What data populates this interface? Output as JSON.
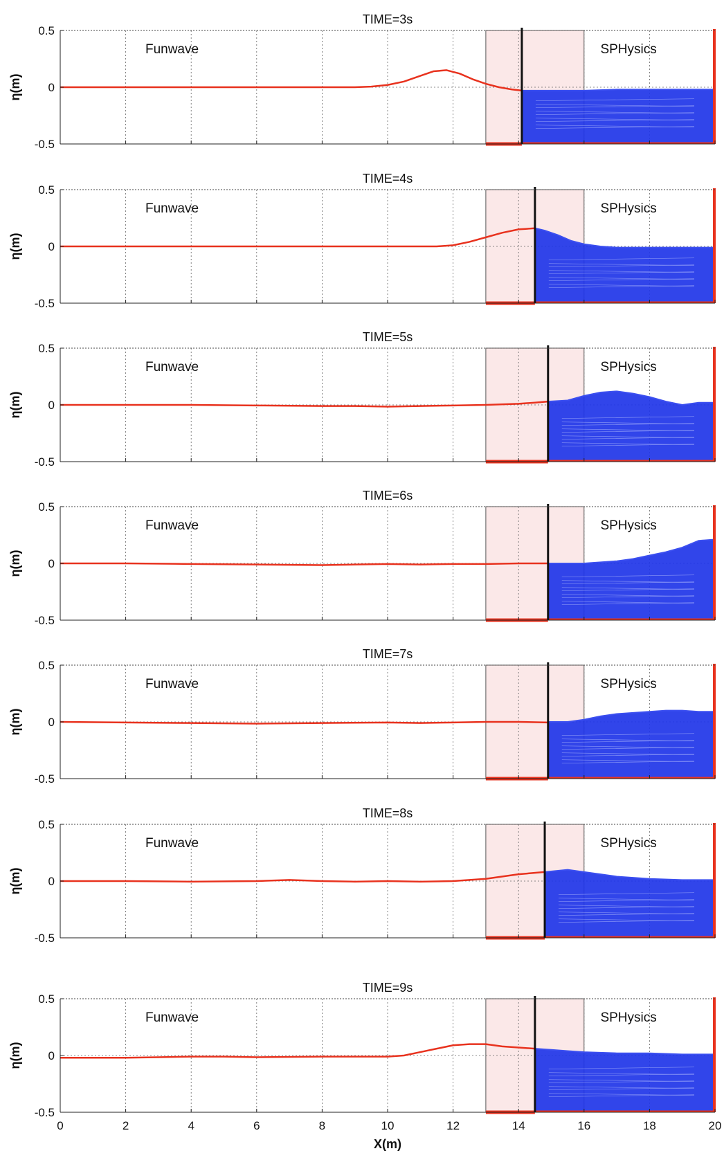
{
  "chart_data": {
    "type": "line",
    "xlabel": "X(m)",
    "ylabel": "η(m)",
    "xlim": [
      0,
      20
    ],
    "ylim": [
      -0.5,
      0.5
    ],
    "x_ticks": [
      "0",
      "2",
      "4",
      "6",
      "8",
      "10",
      "12",
      "14",
      "16",
      "18",
      "20"
    ],
    "y_ticks": [
      "0.5",
      "0",
      "-0.5"
    ],
    "grid": true,
    "left_label": "Funwave",
    "right_label": "SPHysics",
    "coupling_zone": [
      13,
      16
    ],
    "floor_level": -0.5,
    "colors": {
      "funwave_line": "#e8321e",
      "sph_particles": "#1f35e8",
      "coupling_zone": "#fbe8e8",
      "interface_line": "#111111"
    },
    "panels": [
      {
        "title": "TIME=3s",
        "interface_x": 14.1,
        "x": [
          0,
          1,
          2,
          3,
          4,
          5,
          6,
          7,
          8,
          9,
          9.5,
          10,
          10.5,
          11,
          11.4,
          11.8,
          12.2,
          12.6,
          13,
          13.4,
          13.8,
          14.1
        ],
        "eta": [
          0,
          0,
          0,
          0,
          0,
          0,
          0,
          0,
          0,
          0,
          0.005,
          0.02,
          0.05,
          0.1,
          0.14,
          0.15,
          0.12,
          0.07,
          0.03,
          0.0,
          -0.02,
          -0.03
        ],
        "sph_x": [
          14.1,
          15,
          16,
          17,
          18,
          19,
          20
        ],
        "sph_eta": [
          -0.03,
          -0.03,
          -0.03,
          -0.02,
          -0.02,
          -0.02,
          -0.02
        ]
      },
      {
        "title": "TIME=4s",
        "interface_x": 14.5,
        "x": [
          0,
          2,
          4,
          6,
          8,
          10,
          11,
          11.5,
          12,
          12.5,
          13,
          13.5,
          14,
          14.5
        ],
        "eta": [
          0,
          0,
          0,
          0,
          0,
          0,
          0,
          0.0,
          0.01,
          0.04,
          0.08,
          0.12,
          0.15,
          0.16
        ],
        "sph_x": [
          14.5,
          14.8,
          15.2,
          15.6,
          16,
          16.5,
          17,
          18,
          19,
          20
        ],
        "sph_eta": [
          0.16,
          0.14,
          0.1,
          0.05,
          0.02,
          0.0,
          -0.01,
          -0.01,
          -0.01,
          -0.01
        ]
      },
      {
        "title": "TIME=5s",
        "interface_x": 14.9,
        "x": [
          0,
          2,
          4,
          6,
          8,
          9,
          10,
          11,
          12,
          13,
          14,
          14.5,
          14.9
        ],
        "eta": [
          0,
          0,
          0,
          -0.005,
          -0.01,
          -0.01,
          -0.015,
          -0.01,
          -0.005,
          0,
          0.01,
          0.02,
          0.03
        ],
        "sph_x": [
          14.9,
          15.5,
          16,
          16.5,
          17,
          17.5,
          18,
          18.5,
          19,
          19.5,
          20
        ],
        "sph_eta": [
          0.03,
          0.04,
          0.08,
          0.11,
          0.12,
          0.1,
          0.07,
          0.03,
          0.0,
          0.02,
          0.02
        ]
      },
      {
        "title": "TIME=6s",
        "interface_x": 14.9,
        "x": [
          0,
          2,
          4,
          6,
          8,
          9,
          10,
          11,
          12,
          13,
          14,
          14.9
        ],
        "eta": [
          0,
          0,
          -0.005,
          -0.01,
          -0.015,
          -0.01,
          -0.005,
          -0.01,
          -0.005,
          -0.005,
          0,
          0.0
        ],
        "sph_x": [
          14.9,
          15.5,
          16,
          16.5,
          17,
          17.5,
          18,
          18.5,
          19,
          19.5,
          20
        ],
        "sph_eta": [
          0.0,
          0.0,
          0.0,
          0.01,
          0.02,
          0.04,
          0.07,
          0.1,
          0.14,
          0.2,
          0.21
        ]
      },
      {
        "title": "TIME=7s",
        "interface_x": 14.9,
        "x": [
          0,
          2,
          4,
          6,
          8,
          10,
          11,
          12,
          13,
          14,
          14.9
        ],
        "eta": [
          0,
          -0.005,
          -0.01,
          -0.015,
          -0.01,
          -0.005,
          -0.01,
          -0.005,
          0,
          0.0,
          -0.005
        ],
        "sph_x": [
          14.9,
          15.5,
          16,
          16.5,
          17,
          17.5,
          18,
          18.5,
          19,
          19.5,
          20
        ],
        "sph_eta": [
          0.0,
          0.0,
          0.02,
          0.05,
          0.07,
          0.08,
          0.09,
          0.1,
          0.1,
          0.09,
          0.09
        ]
      },
      {
        "title": "TIME=8s",
        "interface_x": 14.8,
        "x": [
          0,
          2,
          4,
          6,
          7,
          8,
          9,
          10,
          11,
          12,
          13,
          14,
          14.8
        ],
        "eta": [
          0,
          0,
          -0.005,
          0.0,
          0.01,
          0.0,
          -0.005,
          0.0,
          -0.005,
          0.0,
          0.02,
          0.06,
          0.08
        ],
        "sph_x": [
          14.8,
          15.5,
          16,
          16.5,
          17,
          17.5,
          18,
          19,
          20
        ],
        "sph_eta": [
          0.08,
          0.1,
          0.08,
          0.06,
          0.04,
          0.03,
          0.02,
          0.01,
          0.01
        ]
      },
      {
        "title": "TIME=9s",
        "interface_x": 14.5,
        "x": [
          0,
          2,
          3,
          4,
          5,
          6,
          8,
          9,
          10,
          10.5,
          11,
          11.5,
          12,
          12.5,
          13,
          13.5,
          14,
          14.5
        ],
        "eta": [
          -0.02,
          -0.02,
          -0.015,
          -0.01,
          -0.01,
          -0.015,
          -0.01,
          -0.01,
          -0.01,
          0.0,
          0.03,
          0.06,
          0.09,
          0.1,
          0.1,
          0.08,
          0.07,
          0.06
        ],
        "sph_x": [
          14.5,
          15,
          15.5,
          16,
          17,
          18,
          19,
          20
        ],
        "sph_eta": [
          0.06,
          0.05,
          0.04,
          0.03,
          0.02,
          0.02,
          0.01,
          0.01
        ]
      }
    ]
  }
}
